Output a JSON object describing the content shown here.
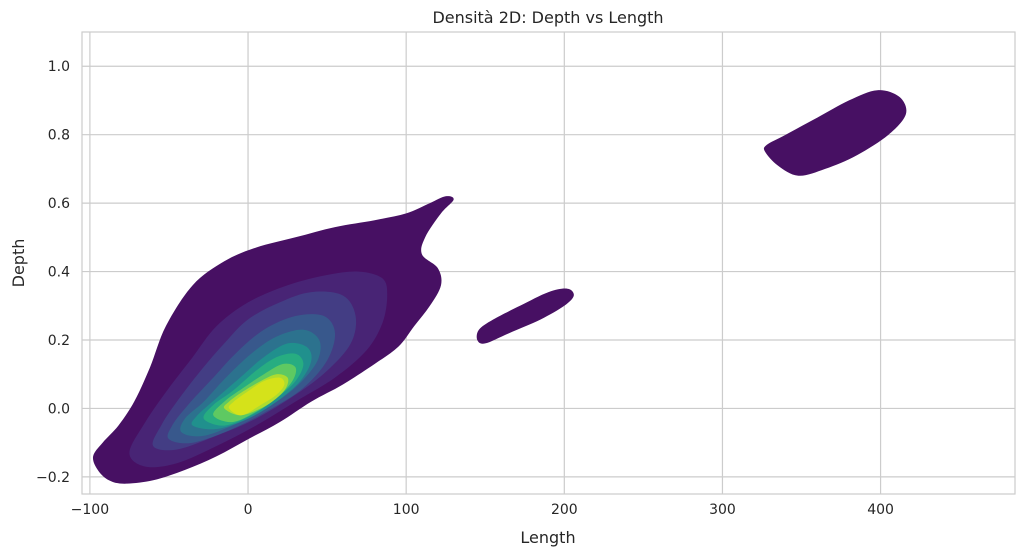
{
  "chart_data": {
    "type": "kde-contour",
    "title": "Densità 2D: Depth vs Length",
    "xlabel": "Length",
    "ylabel": "Depth",
    "xlim": [
      -105,
      485
    ],
    "ylim": [
      -0.25,
      1.1
    ],
    "x_ticks": [
      -100,
      0,
      100,
      200,
      300,
      400
    ],
    "y_ticks": [
      -0.2,
      0.0,
      0.2,
      0.4,
      0.6,
      0.8,
      1.0
    ],
    "x_tick_labels": [
      "−100",
      "0",
      "100",
      "200",
      "300",
      "400"
    ],
    "y_tick_labels": [
      "−0.2",
      "0.0",
      "0.2",
      "0.4",
      "0.6",
      "0.8",
      "1.0"
    ],
    "grid": true,
    "colormap": "viridis",
    "level_colors": [
      "#471063",
      "#482475",
      "#433d84",
      "#38588c",
      "#2c728e",
      "#20908d",
      "#27ad81",
      "#5ec962",
      "#addc30",
      "#d5e21a"
    ],
    "clusters": [
      {
        "name": "main",
        "levels": [
          {
            "level": 1,
            "outline": [
              [
                -98,
                -0.14
              ],
              [
                -95,
                -0.18
              ],
              [
                -88,
                -0.21
              ],
              [
                -78,
                -0.22
              ],
              [
                -60,
                -0.21
              ],
              [
                -40,
                -0.18
              ],
              [
                -20,
                -0.14
              ],
              [
                0,
                -0.09
              ],
              [
                20,
                -0.04
              ],
              [
                40,
                0.02
              ],
              [
                60,
                0.07
              ],
              [
                80,
                0.13
              ],
              [
                95,
                0.18
              ],
              [
                105,
                0.24
              ],
              [
                115,
                0.3
              ],
              [
                122,
                0.36
              ],
              [
                120,
                0.41
              ],
              [
                110,
                0.45
              ],
              [
                112,
                0.5
              ],
              [
                122,
                0.57
              ],
              [
                130,
                0.61
              ],
              [
                125,
                0.62
              ],
              [
                115,
                0.6
              ],
              [
                100,
                0.57
              ],
              [
                80,
                0.55
              ],
              [
                55,
                0.53
              ],
              [
                30,
                0.5
              ],
              [
                5,
                0.47
              ],
              [
                -15,
                0.43
              ],
              [
                -35,
                0.36
              ],
              [
                -52,
                0.24
              ],
              [
                -62,
                0.12
              ],
              [
                -72,
                0.02
              ],
              [
                -82,
                -0.05
              ],
              [
                -92,
                -0.1
              ]
            ]
          },
          {
            "level": 2,
            "outline": [
              [
                -75,
                -0.13
              ],
              [
                -65,
                -0.17
              ],
              [
                -45,
                -0.16
              ],
              [
                -20,
                -0.11
              ],
              [
                5,
                -0.05
              ],
              [
                30,
                0.02
              ],
              [
                55,
                0.09
              ],
              [
                75,
                0.17
              ],
              [
                85,
                0.25
              ],
              [
                88,
                0.33
              ],
              [
                85,
                0.38
              ],
              [
                70,
                0.4
              ],
              [
                50,
                0.39
              ],
              [
                25,
                0.36
              ],
              [
                0,
                0.31
              ],
              [
                -20,
                0.24
              ],
              [
                -35,
                0.15
              ],
              [
                -50,
                0.06
              ],
              [
                -65,
                -0.04
              ]
            ]
          },
          {
            "level": 3,
            "outline": [
              [
                -60,
                -0.11
              ],
              [
                -45,
                -0.12
              ],
              [
                -20,
                -0.08
              ],
              [
                5,
                -0.03
              ],
              [
                30,
                0.04
              ],
              [
                50,
                0.11
              ],
              [
                65,
                0.19
              ],
              [
                68,
                0.27
              ],
              [
                60,
                0.33
              ],
              [
                40,
                0.34
              ],
              [
                20,
                0.31
              ],
              [
                0,
                0.26
              ],
              [
                -15,
                0.19
              ],
              [
                -30,
                0.11
              ],
              [
                -45,
                0.02
              ],
              [
                -55,
                -0.05
              ]
            ]
          },
          {
            "level": 4,
            "outline": [
              [
                -50,
                -0.09
              ],
              [
                -35,
                -0.1
              ],
              [
                -10,
                -0.06
              ],
              [
                15,
                0.0
              ],
              [
                35,
                0.06
              ],
              [
                50,
                0.14
              ],
              [
                55,
                0.22
              ],
              [
                48,
                0.27
              ],
              [
                30,
                0.27
              ],
              [
                10,
                0.23
              ],
              [
                -8,
                0.16
              ],
              [
                -22,
                0.09
              ],
              [
                -38,
                0.01
              ],
              [
                -48,
                -0.05
              ]
            ]
          },
          {
            "level": 5,
            "outline": [
              [
                -42,
                -0.07
              ],
              [
                -28,
                -0.08
              ],
              [
                -5,
                -0.04
              ],
              [
                15,
                0.01
              ],
              [
                32,
                0.07
              ],
              [
                44,
                0.14
              ],
              [
                45,
                0.2
              ],
              [
                35,
                0.23
              ],
              [
                18,
                0.21
              ],
              [
                2,
                0.16
              ],
              [
                -14,
                0.09
              ],
              [
                -28,
                0.02
              ],
              [
                -40,
                -0.03
              ]
            ]
          },
          {
            "level": 6,
            "outline": [
              [
                -35,
                -0.05
              ],
              [
                -20,
                -0.06
              ],
              [
                0,
                -0.03
              ],
              [
                18,
                0.02
              ],
              [
                33,
                0.08
              ],
              [
                40,
                0.14
              ],
              [
                37,
                0.18
              ],
              [
                25,
                0.19
              ],
              [
                10,
                0.15
              ],
              [
                -5,
                0.09
              ],
              [
                -20,
                0.03
              ],
              [
                -32,
                -0.02
              ]
            ]
          },
          {
            "level": 7,
            "outline": [
              [
                -28,
                -0.03
              ],
              [
                -15,
                -0.05
              ],
              [
                2,
                -0.02
              ],
              [
                18,
                0.03
              ],
              [
                30,
                0.08
              ],
              [
                35,
                0.13
              ],
              [
                30,
                0.16
              ],
              [
                18,
                0.15
              ],
              [
                5,
                0.11
              ],
              [
                -10,
                0.05
              ],
              [
                -22,
                0.01
              ]
            ]
          },
          {
            "level": 8,
            "outline": [
              [
                -22,
                -0.02
              ],
              [
                -10,
                -0.04
              ],
              [
                5,
                -0.01
              ],
              [
                18,
                0.03
              ],
              [
                28,
                0.08
              ],
              [
                30,
                0.12
              ],
              [
                22,
                0.13
              ],
              [
                10,
                0.1
              ],
              [
                -3,
                0.06
              ],
              [
                -15,
                0.02
              ]
            ]
          },
          {
            "level": 9,
            "outline": [
              [
                -15,
                0.0
              ],
              [
                -5,
                -0.02
              ],
              [
                8,
                0.0
              ],
              [
                18,
                0.03
              ],
              [
                24,
                0.06
              ],
              [
                25,
                0.09
              ],
              [
                18,
                0.1
              ],
              [
                8,
                0.08
              ],
              [
                -3,
                0.05
              ],
              [
                -12,
                0.02
              ]
            ]
          },
          {
            "level": 10,
            "outline": [
              [
                -12,
                0.0
              ],
              [
                -4,
                -0.02
              ],
              [
                8,
                0.01
              ],
              [
                18,
                0.04
              ],
              [
                23,
                0.07
              ],
              [
                20,
                0.09
              ],
              [
                10,
                0.08
              ],
              [
                0,
                0.05
              ],
              [
                -9,
                0.02
              ]
            ]
          }
        ]
      },
      {
        "name": "middle",
        "levels": [
          {
            "level": 1,
            "outline": [
              [
                145,
                0.2
              ],
              [
                150,
                0.19
              ],
              [
                165,
                0.22
              ],
              [
                185,
                0.26
              ],
              [
                200,
                0.3
              ],
              [
                206,
                0.33
              ],
              [
                202,
                0.35
              ],
              [
                190,
                0.34
              ],
              [
                172,
                0.3
              ],
              [
                155,
                0.26
              ],
              [
                146,
                0.23
              ]
            ]
          }
        ]
      },
      {
        "name": "upper-right",
        "levels": [
          {
            "level": 1,
            "outline": [
              [
                327,
                0.75
              ],
              [
                335,
                0.71
              ],
              [
                348,
                0.68
              ],
              [
                365,
                0.7
              ],
              [
                385,
                0.74
              ],
              [
                405,
                0.8
              ],
              [
                416,
                0.86
              ],
              [
                412,
                0.91
              ],
              [
                398,
                0.93
              ],
              [
                380,
                0.9
              ],
              [
                360,
                0.85
              ],
              [
                340,
                0.8
              ],
              [
                328,
                0.77
              ]
            ]
          }
        ]
      }
    ]
  }
}
